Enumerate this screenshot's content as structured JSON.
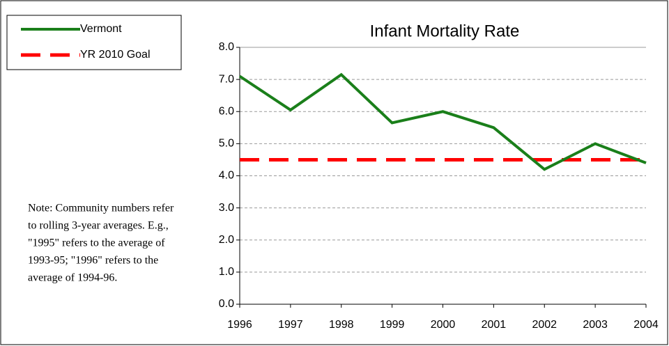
{
  "chart_data": {
    "type": "line",
    "title": "Infant Mortality Rate",
    "categories": [
      "1996",
      "1997",
      "1998",
      "1999",
      "2000",
      "2001",
      "2002",
      "2003",
      "2004"
    ],
    "series": [
      {
        "name": "Vermont",
        "color": "#1a7f1a",
        "dashed": false,
        "values": [
          7.1,
          6.05,
          7.15,
          5.65,
          6.0,
          5.5,
          4.2,
          5.0,
          4.4
        ]
      },
      {
        "name": "YR 2010 Goal",
        "color": "#ff0000",
        "dashed": true,
        "values": [
          4.5,
          4.5,
          4.5,
          4.5,
          4.5,
          4.5,
          4.5,
          4.5,
          4.5
        ]
      }
    ],
    "ylim": [
      0,
      8
    ],
    "yticks": [
      {
        "value": 0,
        "label": "0.0"
      },
      {
        "value": 1,
        "label": "1.0"
      },
      {
        "value": 2,
        "label": "2.0"
      },
      {
        "value": 3,
        "label": "3.0"
      },
      {
        "value": 4,
        "label": "4.0"
      },
      {
        "value": 5,
        "label": "5.0"
      },
      {
        "value": 6,
        "label": "6.0"
      },
      {
        "value": 7,
        "label": "7.0"
      },
      {
        "value": 8,
        "label": "8.0"
      }
    ],
    "grid": true,
    "legend": "top-left",
    "note": [
      "Note: Community numbers refer",
      "to rolling 3-year averages.  E.g.,",
      "\"1995\" refers to the average of",
      "1993-95; \"1996\" refers to the",
      "average of 1994-96."
    ]
  }
}
